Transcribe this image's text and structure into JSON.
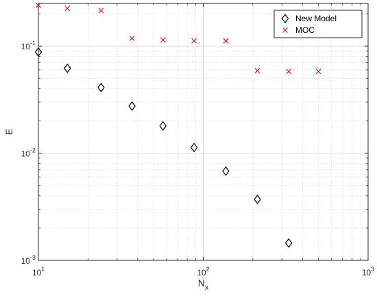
{
  "chart_data": {
    "type": "scatter",
    "x_scale": "log",
    "y_scale": "log",
    "xlim": [
      10,
      1000
    ],
    "ylim": [
      0.001,
      0.25
    ],
    "x_ticks": [
      {
        "value": 10,
        "base": "10",
        "exp": "1"
      },
      {
        "value": 100,
        "base": "10",
        "exp": "2"
      },
      {
        "value": 1000,
        "base": "10",
        "exp": "3"
      }
    ],
    "y_ticks": [
      {
        "value": 0.001,
        "base": "10",
        "exp": "-3"
      },
      {
        "value": 0.01,
        "base": "10",
        "exp": "-2"
      },
      {
        "value": 0.1,
        "base": "10",
        "exp": "-1"
      }
    ],
    "xlabel": {
      "base": "N",
      "sub": "x"
    },
    "ylabel": "E",
    "grid": true,
    "legend_position": "top-right",
    "series": [
      {
        "name": "New Model",
        "marker": "diamond",
        "color": "#000000",
        "x": [
          10,
          15,
          24,
          37,
          57,
          88,
          137,
          213,
          330
        ],
        "y": [
          0.088,
          0.062,
          0.041,
          0.0275,
          0.018,
          0.0113,
          0.0068,
          0.0037,
          0.00145
        ]
      },
      {
        "name": "MOC",
        "marker": "x",
        "color": "#e0191b",
        "x": [
          10,
          15,
          24,
          37,
          57,
          88,
          137,
          213,
          330,
          500
        ],
        "y": [
          0.24,
          0.225,
          0.215,
          0.118,
          0.114,
          0.112,
          0.112,
          0.059,
          0.058,
          0.058
        ]
      }
    ]
  }
}
